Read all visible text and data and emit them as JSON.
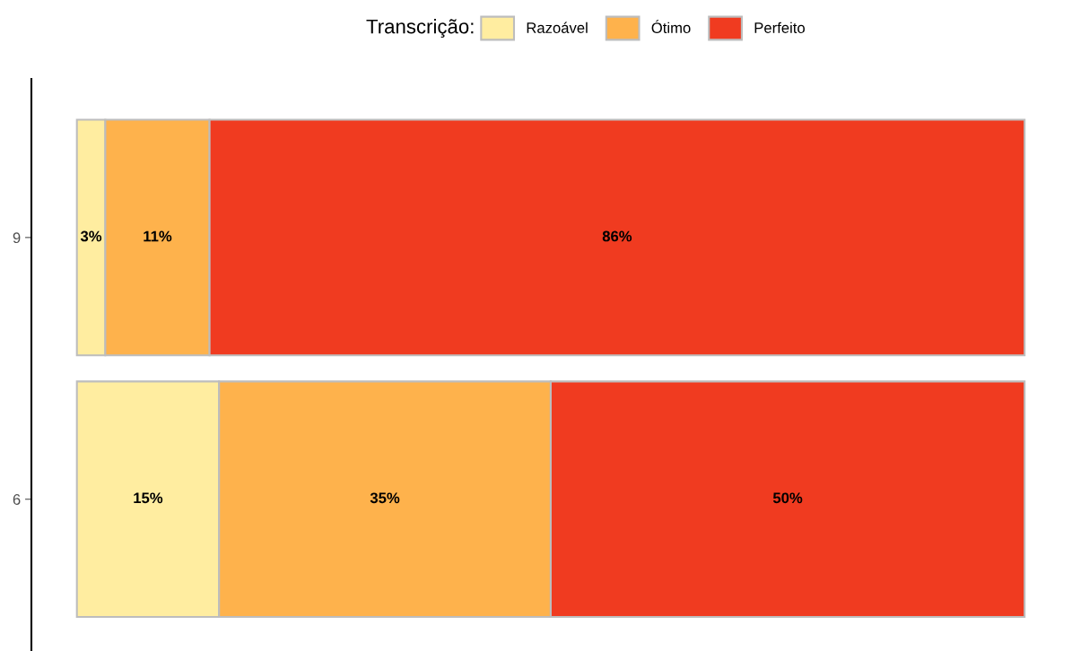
{
  "chart_data": {
    "type": "bar",
    "orientation": "horizontal",
    "stacked": true,
    "legend_title": "Transcrição:",
    "legend": "top",
    "categories": [
      "9",
      "6"
    ],
    "series": [
      {
        "name": "Razoável",
        "color": "#ffeda0",
        "values": [
          3,
          15
        ],
        "value_labels": [
          "3%",
          "15%"
        ]
      },
      {
        "name": "Ótimo",
        "color": "#feb24c",
        "values": [
          11,
          35
        ],
        "value_labels": [
          "11%",
          "35%"
        ]
      },
      {
        "name": "Perfeito",
        "color": "#f03b20",
        "values": [
          86,
          50
        ],
        "value_labels": [
          "86%",
          "50%"
        ]
      }
    ],
    "tick_labels": "y",
    "grid": false
  }
}
